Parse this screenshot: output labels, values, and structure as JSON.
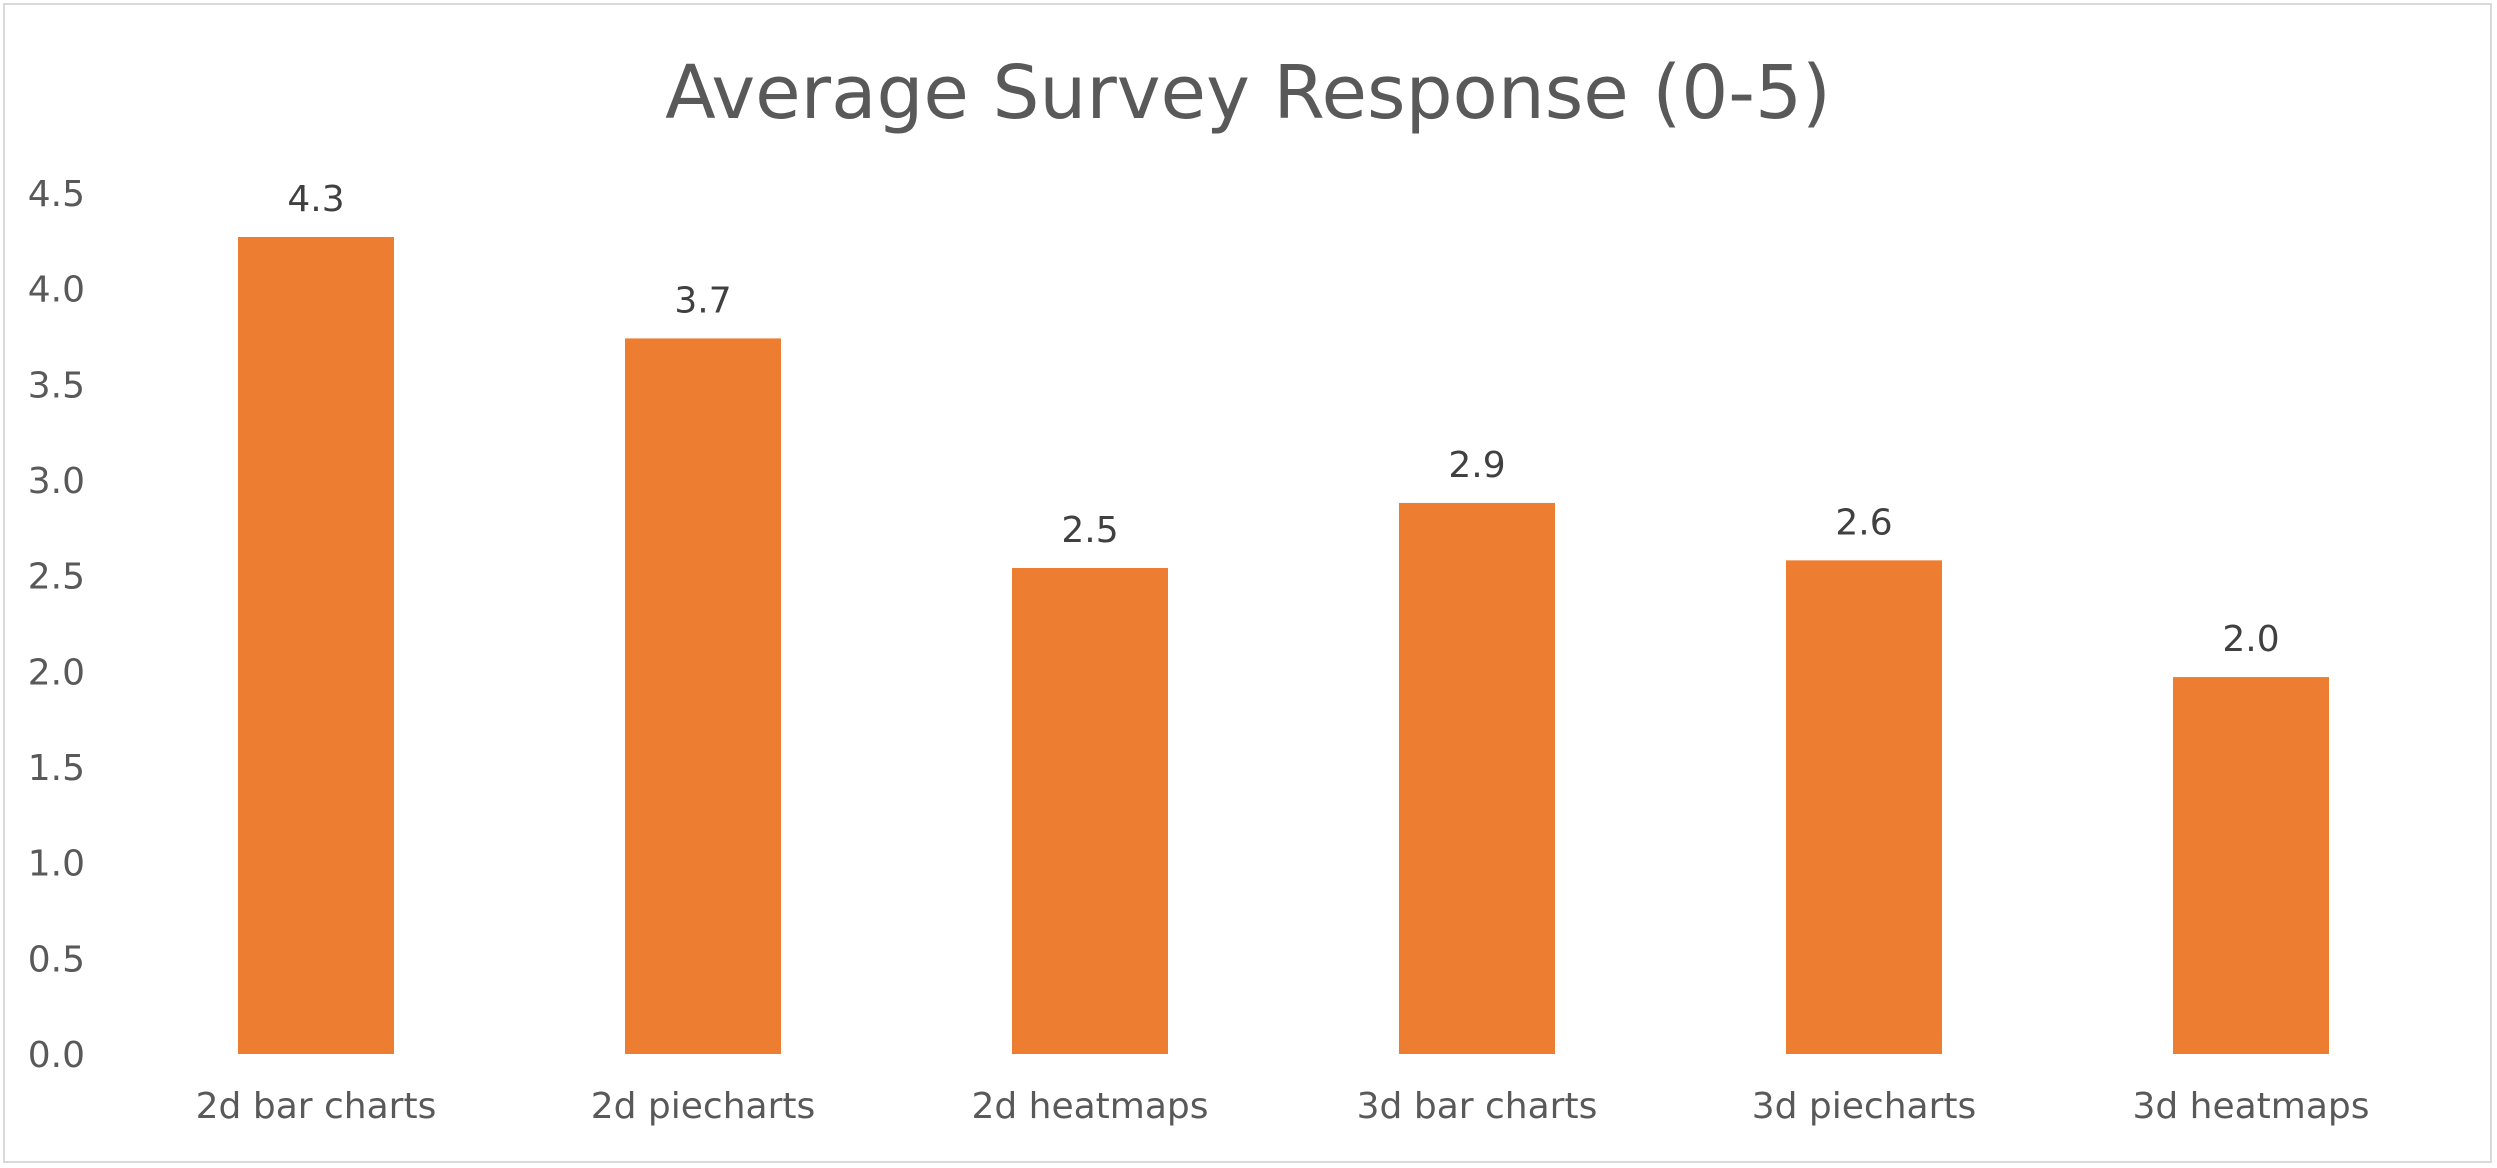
{
  "chart_data": {
    "type": "bar",
    "title": "Average Survey Response (0-5)",
    "categories": [
      "2d bar charts",
      "2d piecharts",
      "2d heatmaps",
      "3d bar charts",
      "3d piecharts",
      "3d heatmaps"
    ],
    "values": [
      4.27,
      3.74,
      2.54,
      2.88,
      2.58,
      1.97
    ],
    "data_labels": [
      "4.3",
      "3.7",
      "2.5",
      "2.9",
      "2.6",
      "2.0"
    ],
    "y_ticks": [
      "0.0",
      "0.5",
      "1.0",
      "1.5",
      "2.0",
      "2.5",
      "3.0",
      "3.5",
      "4.0",
      "4.5"
    ],
    "ylim": [
      0,
      4.5
    ],
    "xlabel": "",
    "ylabel": "",
    "grid": false,
    "legend": "none",
    "bar_color": "#ED7D31"
  }
}
